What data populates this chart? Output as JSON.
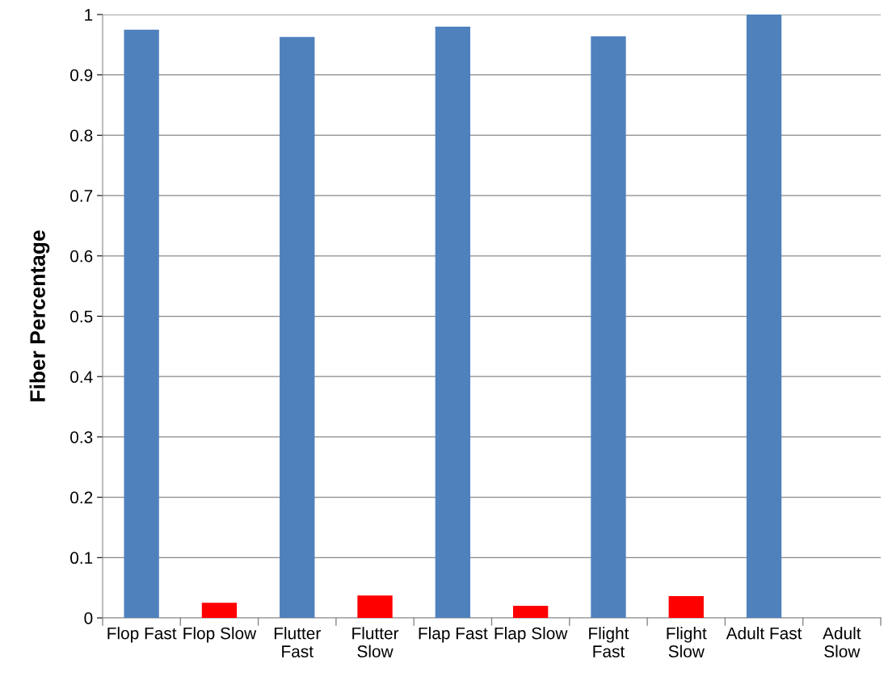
{
  "chart_data": {
    "type": "bar",
    "ylabel": "Fiber Percentage",
    "categories": [
      "Flop Fast",
      "Flop Slow",
      "Flutter Fast",
      "Flutter Slow",
      "Flap Fast",
      "Flap Slow",
      "Flight Fast",
      "Flight Slow",
      "Adult Fast",
      "Adult Slow"
    ],
    "values": [
      0.975,
      0.025,
      0.963,
      0.037,
      0.98,
      0.02,
      0.964,
      0.036,
      1.0,
      0
    ],
    "colors": [
      "#4f81bd",
      "#ff0000",
      "#4f81bd",
      "#ff0000",
      "#4f81bd",
      "#ff0000",
      "#4f81bd",
      "#ff0000",
      "#4f81bd",
      "#ff0000"
    ],
    "ylim": [
      0,
      1
    ],
    "yticks": [
      0,
      0.1,
      0.2,
      0.3,
      0.4,
      0.5,
      0.6,
      0.7,
      0.8,
      0.9,
      1
    ],
    "grid": "y"
  }
}
